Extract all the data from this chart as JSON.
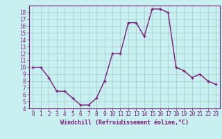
{
  "x": [
    0,
    1,
    2,
    3,
    4,
    5,
    6,
    7,
    8,
    9,
    10,
    11,
    12,
    13,
    14,
    15,
    16,
    17,
    18,
    19,
    20,
    21,
    22,
    23
  ],
  "y": [
    10.0,
    10.0,
    8.5,
    6.5,
    6.5,
    5.5,
    4.5,
    4.5,
    5.5,
    8.0,
    12.0,
    12.0,
    16.5,
    16.5,
    14.5,
    18.5,
    18.5,
    18.0,
    10.0,
    9.5,
    8.5,
    9.0,
    8.0,
    7.5
  ],
  "line_color": "#7b1a7b",
  "marker": "+",
  "marker_color": "#7b1a7b",
  "bg_color": "#c8f0f0",
  "grid_color": "#a0c8c8",
  "xlabel": "Windchill (Refroidissement éolien,°C)",
  "xlabel_color": "#7b1a7b",
  "tick_color": "#7b1a7b",
  "ylim": [
    4,
    19
  ],
  "xlim": [
    -0.5,
    23.5
  ],
  "yticks": [
    4,
    5,
    6,
    7,
    8,
    9,
    10,
    11,
    12,
    13,
    14,
    15,
    16,
    17,
    18
  ],
  "xticks": [
    0,
    1,
    2,
    3,
    4,
    5,
    6,
    7,
    8,
    9,
    10,
    11,
    12,
    13,
    14,
    15,
    16,
    17,
    18,
    19,
    20,
    21,
    22,
    23
  ],
  "spine_color": "#7b1a7b",
  "linewidth": 1.0,
  "markersize": 3.5,
  "tick_fontsize": 5.5,
  "xlabel_fontsize": 6.0
}
